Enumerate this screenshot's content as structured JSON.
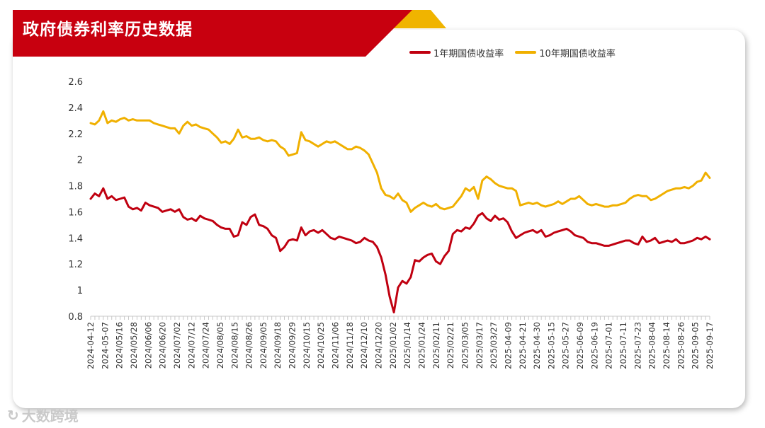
{
  "banner": {
    "title": "政府债券利率历史数据"
  },
  "watermark": {
    "icon": "brand-logo-icon",
    "text": "大数跨境"
  },
  "colors": {
    "banner_red": "#c8000f",
    "banner_gold": "#f0b400",
    "series_1y": "#c00010",
    "series_10y": "#f0b000"
  },
  "chart_data": {
    "type": "line",
    "title": "",
    "xlabel": "",
    "ylabel": "",
    "ylim": [
      0.8,
      2.6
    ],
    "yticks": [
      "0.8",
      "1",
      "1.2",
      "1.4",
      "1.6",
      "1.8",
      "2",
      "2.2",
      "2.4",
      "2.6"
    ],
    "grid": false,
    "legend_position": "top-right",
    "x_tick_labels": [
      "2024-04-12",
      "2024-05-07",
      "2024/05/16",
      "2024/05/28",
      "2024/06/06",
      "2024/06/20",
      "2024/07/02",
      "2024/07/12",
      "2024/07/24",
      "2024/08/05",
      "2024/08/15",
      "2024/08/26",
      "2024/09/05",
      "2024/09/18",
      "2024/09/29",
      "2024/10/15",
      "2024/10/25",
      "2024/11/06",
      "2024/11/18",
      "2024/12/10",
      "2024/12/20",
      "2025/01/02",
      "2025/01/14",
      "2025/01/24",
      "2025/02/11",
      "2025/02/21",
      "2025/03/05",
      "2025/03/17",
      "2025/03/27",
      "2025-04-09",
      "2025-04-21",
      "2025-04-30",
      "2025-05-15",
      "2025-05-27",
      "2025-06-09",
      "2025-06-19",
      "2025-07-01",
      "2025-07-11",
      "2025-07-23",
      "2025-08-04",
      "2025-08-14",
      "2025-08-26",
      "2025-09-05",
      "2025-09-17"
    ],
    "series": [
      {
        "name": "1年期国债收益率",
        "color": "#c00010",
        "values": [
          1.7,
          1.74,
          1.72,
          1.78,
          1.7,
          1.72,
          1.69,
          1.7,
          1.71,
          1.64,
          1.62,
          1.63,
          1.61,
          1.67,
          1.65,
          1.64,
          1.63,
          1.6,
          1.61,
          1.62,
          1.6,
          1.62,
          1.56,
          1.54,
          1.55,
          1.53,
          1.57,
          1.55,
          1.54,
          1.53,
          1.5,
          1.48,
          1.47,
          1.47,
          1.41,
          1.42,
          1.52,
          1.5,
          1.56,
          1.58,
          1.5,
          1.49,
          1.47,
          1.42,
          1.4,
          1.3,
          1.33,
          1.38,
          1.39,
          1.38,
          1.48,
          1.42,
          1.45,
          1.46,
          1.44,
          1.46,
          1.43,
          1.4,
          1.39,
          1.41,
          1.4,
          1.39,
          1.38,
          1.36,
          1.37,
          1.4,
          1.38,
          1.37,
          1.33,
          1.25,
          1.12,
          0.95,
          0.83,
          1.02,
          1.07,
          1.05,
          1.1,
          1.23,
          1.22,
          1.25,
          1.27,
          1.28,
          1.22,
          1.2,
          1.26,
          1.3,
          1.43,
          1.46,
          1.45,
          1.48,
          1.47,
          1.51,
          1.57,
          1.59,
          1.55,
          1.53,
          1.57,
          1.54,
          1.55,
          1.52,
          1.45,
          1.4,
          1.42,
          1.44,
          1.45,
          1.46,
          1.44,
          1.46,
          1.41,
          1.42,
          1.44,
          1.45,
          1.46,
          1.47,
          1.45,
          1.42,
          1.41,
          1.4,
          1.37,
          1.36,
          1.36,
          1.35,
          1.34,
          1.34,
          1.35,
          1.36,
          1.37,
          1.38,
          1.38,
          1.36,
          1.35,
          1.41,
          1.37,
          1.38,
          1.4,
          1.36,
          1.37,
          1.38,
          1.37,
          1.39,
          1.36,
          1.36,
          1.37,
          1.38,
          1.4,
          1.39,
          1.41,
          1.39
        ]
      },
      {
        "name": "10年期国债收益率",
        "color": "#f0b000",
        "values": [
          2.28,
          2.27,
          2.3,
          2.37,
          2.28,
          2.3,
          2.29,
          2.31,
          2.32,
          2.3,
          2.31,
          2.3,
          2.3,
          2.3,
          2.3,
          2.28,
          2.27,
          2.26,
          2.25,
          2.24,
          2.24,
          2.2,
          2.26,
          2.29,
          2.26,
          2.27,
          2.25,
          2.24,
          2.23,
          2.2,
          2.17,
          2.13,
          2.14,
          2.12,
          2.16,
          2.23,
          2.17,
          2.18,
          2.16,
          2.16,
          2.17,
          2.15,
          2.14,
          2.15,
          2.14,
          2.1,
          2.08,
          2.03,
          2.04,
          2.05,
          2.21,
          2.15,
          2.14,
          2.12,
          2.1,
          2.12,
          2.14,
          2.13,
          2.14,
          2.12,
          2.1,
          2.08,
          2.08,
          2.1,
          2.09,
          2.07,
          2.04,
          1.97,
          1.9,
          1.78,
          1.73,
          1.72,
          1.7,
          1.74,
          1.69,
          1.67,
          1.6,
          1.63,
          1.65,
          1.67,
          1.65,
          1.64,
          1.66,
          1.63,
          1.62,
          1.63,
          1.64,
          1.68,
          1.72,
          1.78,
          1.76,
          1.79,
          1.7,
          1.84,
          1.87,
          1.85,
          1.82,
          1.8,
          1.79,
          1.78,
          1.78,
          1.76,
          1.65,
          1.66,
          1.67,
          1.66,
          1.67,
          1.65,
          1.64,
          1.65,
          1.66,
          1.68,
          1.66,
          1.68,
          1.7,
          1.7,
          1.72,
          1.69,
          1.66,
          1.65,
          1.66,
          1.65,
          1.64,
          1.64,
          1.65,
          1.65,
          1.66,
          1.67,
          1.7,
          1.72,
          1.73,
          1.72,
          1.72,
          1.69,
          1.7,
          1.72,
          1.74,
          1.76,
          1.77,
          1.78,
          1.78,
          1.79,
          1.78,
          1.8,
          1.83,
          1.84,
          1.9,
          1.86
        ]
      }
    ]
  }
}
